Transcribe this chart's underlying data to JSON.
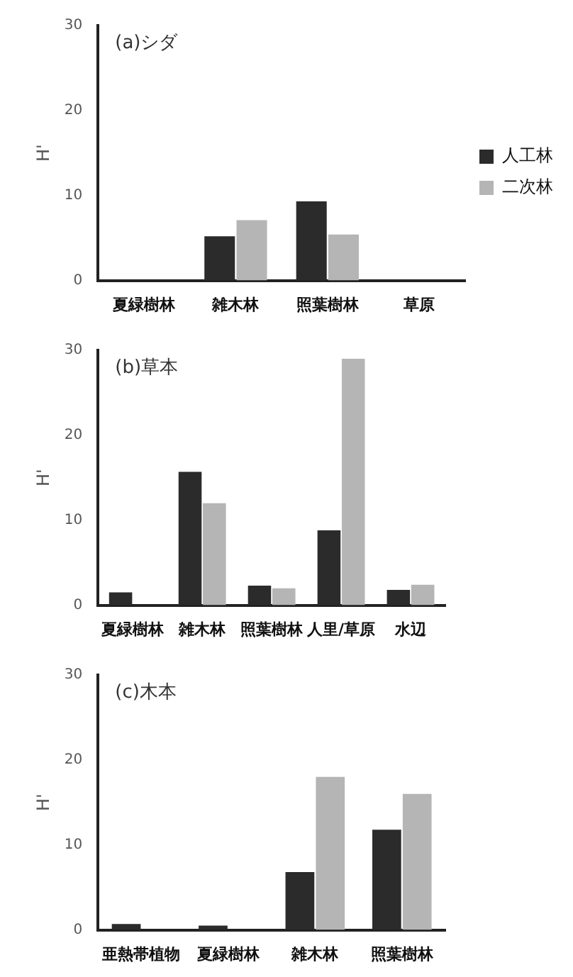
{
  "chart_data": [
    {
      "type": "bar",
      "title": "(a)シダ",
      "ylabel": "H'",
      "categories": [
        "夏緑樹林",
        "雑木林",
        "照葉樹林",
        "草原"
      ],
      "series": [
        {
          "name": "人工林",
          "color": "#2b2b2b",
          "values": [
            null,
            5.2,
            9.3,
            null
          ]
        },
        {
          "name": "二次林",
          "color": "#b5b5b5",
          "values": [
            0,
            7.1,
            5.4,
            0
          ]
        }
      ],
      "ylim": [
        0,
        30
      ],
      "yticks": [
        0,
        10,
        20,
        30
      ],
      "grid": false,
      "legend": "right"
    },
    {
      "type": "bar",
      "title": "(b)草本",
      "ylabel": "H'",
      "categories": [
        "夏緑樹林",
        "雑木林",
        "照葉樹林",
        "人里/草原",
        "水辺"
      ],
      "series": [
        {
          "color": "#2b2b2b",
          "values": [
            1.5,
            15.7,
            2.3,
            8.8,
            1.8
          ]
        },
        {
          "color": "#b5b5b5",
          "values": [
            null,
            12,
            2,
            29,
            2.4
          ]
        }
      ],
      "ylim": [
        0,
        30
      ],
      "yticks": [
        0,
        10,
        20,
        30
      ],
      "grid": false,
      "legend": false
    },
    {
      "type": "bar",
      "title": "(c)木本",
      "ylabel": "H'",
      "categories": [
        "亜熱帯植物",
        "夏緑樹林",
        "雑木林",
        "照葉樹林"
      ],
      "series": [
        {
          "color": "#2b2b2b",
          "values": [
            0.7,
            0.5,
            6.8,
            11.8
          ]
        },
        {
          "color": "#b5b5b5",
          "values": [
            0,
            0,
            18,
            16
          ]
        }
      ],
      "ylim": [
        0,
        30
      ],
      "yticks": [
        0,
        10,
        20,
        30
      ],
      "grid": false,
      "legend": false
    }
  ]
}
